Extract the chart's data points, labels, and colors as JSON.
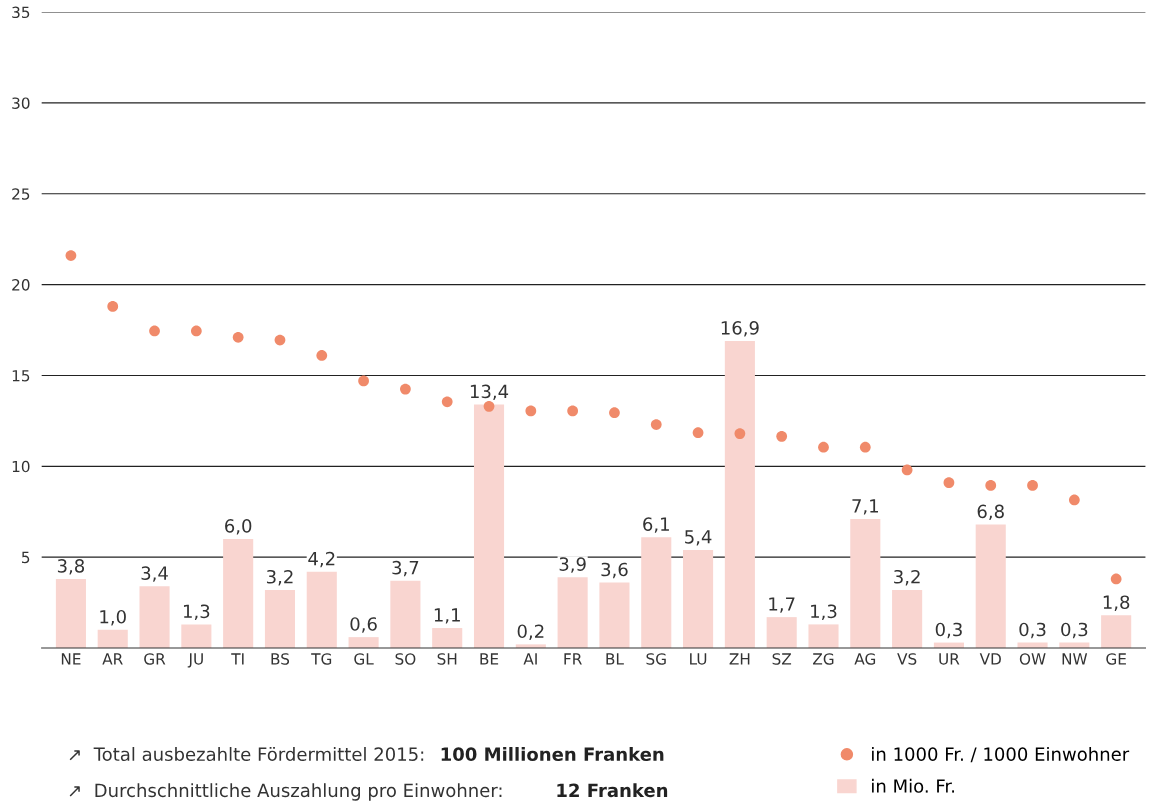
{
  "chart_data": {
    "type": "bar",
    "categories": [
      "NE",
      "AR",
      "GR",
      "JU",
      "TI",
      "BS",
      "TG",
      "GL",
      "SO",
      "SH",
      "BE",
      "AI",
      "FR",
      "BL",
      "SG",
      "LU",
      "ZH",
      "SZ",
      "ZG",
      "AG",
      "VS",
      "UR",
      "VD",
      "OW",
      "NW",
      "GE"
    ],
    "series": [
      {
        "name": "in Mio. Fr.",
        "color": "#f9d5d0",
        "data_labels": true,
        "values": [
          3.8,
          1.0,
          3.4,
          1.3,
          6.0,
          3.2,
          4.2,
          0.6,
          3.7,
          1.1,
          13.4,
          0.2,
          3.9,
          3.6,
          6.1,
          5.4,
          16.9,
          1.7,
          1.3,
          7.1,
          3.2,
          0.3,
          6.8,
          0.3,
          0.3,
          1.8
        ],
        "value_labels": [
          "3,8",
          "1,0",
          "3,4",
          "1,3",
          "6,0",
          "3,2",
          "4,2",
          "0,6",
          "3,7",
          "1,1",
          "13,4",
          "0,2",
          "3,9",
          "3,6",
          "6,1",
          "5,4",
          "16,9",
          "1,7",
          "1,3",
          "7,1",
          "3,2",
          "0,3",
          "6,8",
          "0,3",
          "0,3",
          "1,8"
        ]
      },
      {
        "name": "in 1000 Fr. / 1000 Einwohner",
        "type": "scatter",
        "color": "#f08a6a",
        "marker": "circle",
        "values": [
          21.6,
          18.8,
          17.45,
          17.45,
          17.1,
          16.95,
          16.1,
          14.7,
          14.25,
          13.55,
          13.3,
          13.05,
          13.05,
          12.95,
          12.3,
          11.85,
          11.8,
          11.65,
          11.05,
          11.05,
          9.8,
          9.1,
          8.95,
          8.95,
          8.15,
          3.8
        ]
      }
    ],
    "ylim": [
      0,
      35
    ],
    "yticks": [
      5,
      10,
      15,
      20,
      25,
      30,
      35
    ],
    "grid": "y",
    "legend": "bottom right",
    "annotations": [
      "↗  Total ausbezahlte Fördermittel 2015:",
      "100 Millionen Franken",
      "↗  Durchschnittliche Auszahlung pro Einwohner:",
      "12 Franken"
    ]
  }
}
